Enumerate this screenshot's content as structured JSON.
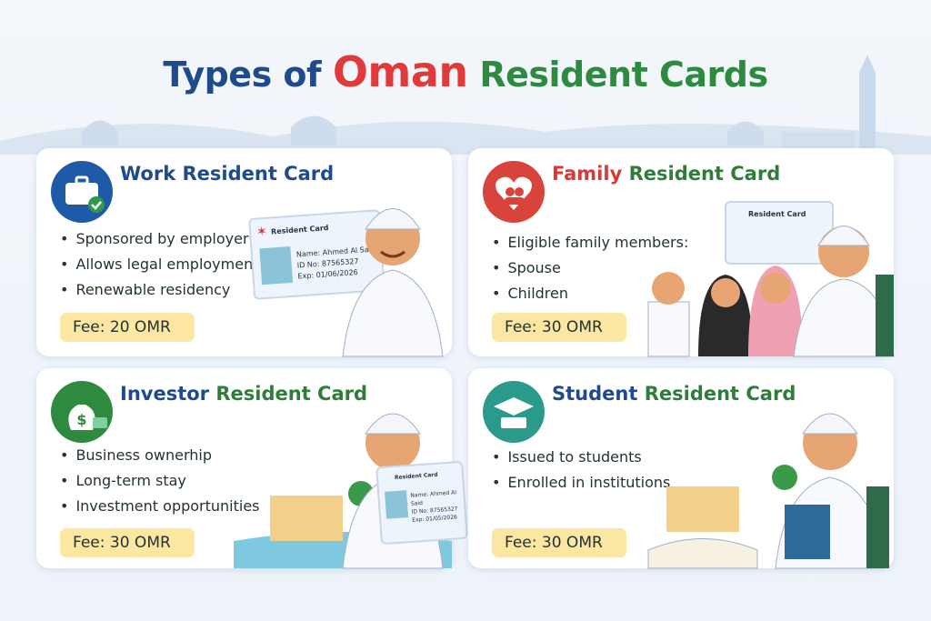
{
  "title": {
    "part1": "Types of",
    "part2": "Oman",
    "part3": "Resident Cards"
  },
  "cards": [
    {
      "title_a": "Work",
      "title_b": "Resident Card",
      "icon": "briefcase-check-icon",
      "bullets": [
        "Sponsored by employer",
        "Allows legal employment",
        "Renewable residency"
      ],
      "fee": "Fee: 20 OMR",
      "id_card": {
        "heading": "Resident Card",
        "name": "Name: Ahmed Al Said",
        "id": "ID No: 87565327",
        "exp": "Exp: 01/06/2026"
      }
    },
    {
      "title_a": "Family",
      "title_b": "Resident Card",
      "icon": "family-heart-icon",
      "bullets": [
        "Eligible family members:",
        "Spouse",
        "Children"
      ],
      "fee": "Fee: 30 OMR",
      "id_card": {
        "heading": "Resident Card"
      }
    },
    {
      "title_a": "Investor",
      "title_b": "Resident Card",
      "icon": "money-bag-icon",
      "bullets": [
        "Business ownerhip",
        "Long-term stay",
        "Investment opportunities"
      ],
      "fee": "Fee: 30 OMR",
      "id_card": {
        "heading": "Resident Card",
        "name": "Name: Ahmed Al Said",
        "id": "ID No: 87565327",
        "exp": "Exp: 01/05/2026"
      }
    },
    {
      "title_a": "Student",
      "title_b": "Resident Card",
      "icon": "graduation-cap-icon",
      "bullets": [
        "Issued to students",
        "Enrolled in institutions"
      ],
      "fee": "Fee: 30 OMR"
    }
  ],
  "colors": {
    "blue": "#1f4a8c",
    "red": "#e03a3a",
    "green": "#2e8a3e",
    "fee_bg": "#fbe6a2"
  }
}
